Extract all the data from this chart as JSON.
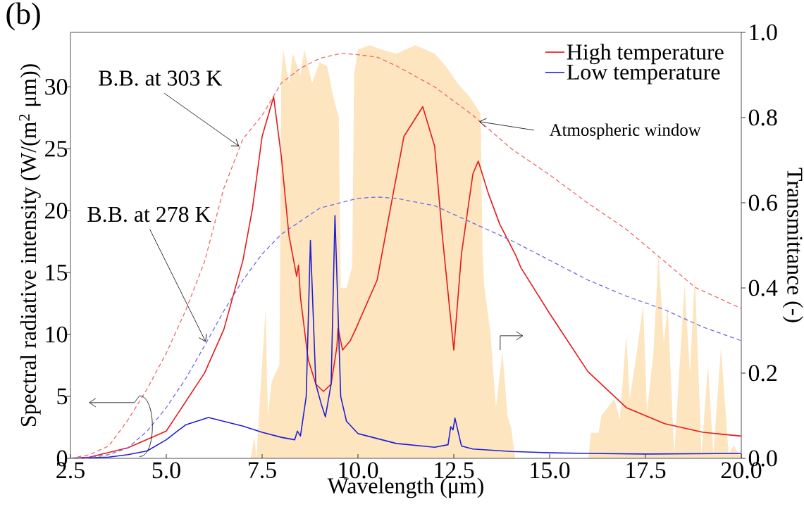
{
  "chart_data": {
    "type": "line",
    "title": "(b)",
    "xlabel": "Wavelength (μm)",
    "ylabel": "Spectral radiative intensity (W/(m$^{2}$ μm))",
    "y2label": "Transmittance (-)",
    "xlim": [
      2.5,
      20
    ],
    "ylim": [
      0,
      34.4
    ],
    "y2lim": [
      0,
      1.0
    ],
    "xticks": [
      {
        "value": 2.5,
        "label": "2.5"
      },
      {
        "value": 5,
        "label": "5.0"
      },
      {
        "value": 7.5,
        "label": "7.5"
      },
      {
        "value": 10,
        "label": "10.0"
      },
      {
        "value": 12.5,
        "label": "12.5"
      },
      {
        "value": 15,
        "label": "15.0"
      },
      {
        "value": 17.5,
        "label": "17.5"
      },
      {
        "value": 20,
        "label": "20.0"
      }
    ],
    "yticks": [
      0,
      5,
      10,
      15,
      20,
      25,
      30
    ],
    "y2ticks": [
      {
        "value": 0,
        "label": "0.0"
      },
      {
        "value": 0.2,
        "label": "0.2"
      },
      {
        "value": 0.4,
        "label": "0.4"
      },
      {
        "value": 0.6,
        "label": "0.6"
      },
      {
        "value": 0.8,
        "label": "0.8"
      },
      {
        "value": 1.0,
        "label": "1.0"
      }
    ],
    "legend": "top right",
    "series": [
      {
        "type": "area",
        "axis": "y2",
        "color": "#fde5c0",
        "x": [
          2.5,
          7.2,
          7.3,
          7.35,
          7.45,
          7.59,
          7.65,
          7.75,
          7.85,
          7.95,
          8.0,
          8.05,
          8.2,
          8.3,
          8.5,
          8.6,
          8.8,
          9.0,
          9.2,
          9.35,
          9.5,
          9.55,
          9.7,
          9.85,
          9.9,
          10.0,
          10.3,
          10.6,
          11.0,
          11.5,
          12.0,
          12.3,
          12.6,
          12.9,
          13.2,
          13.25,
          13.3,
          13.45,
          13.6,
          13.77,
          13.9,
          14.0,
          14.1,
          16.01,
          16.08,
          16.28,
          16.35,
          16.69,
          16.83,
          17.0,
          17.09,
          17.26,
          17.44,
          17.54,
          17.71,
          17.84,
          17.98,
          18.08,
          18.25,
          18.38,
          18.52,
          18.66,
          18.79,
          18.96,
          19.13,
          19.27,
          19.47,
          19.67,
          19.8,
          20.0
        ],
        "values": [
          0,
          0,
          0.05,
          0,
          0.15,
          0.35,
          0.1,
          0.18,
          0.2,
          0.22,
          0.9,
          0.96,
          0.88,
          0.95,
          0.9,
          0.96,
          0.88,
          0.93,
          0.92,
          0.85,
          0.8,
          0.4,
          0.4,
          0.45,
          0.9,
          0.96,
          0.97,
          0.96,
          0.95,
          0.97,
          0.95,
          0.92,
          0.88,
          0.85,
          0.81,
          0.48,
          0.4,
          0.3,
          0.12,
          0.25,
          0.1,
          0.07,
          0,
          0,
          0.06,
          0.06,
          0.1,
          0.14,
          0.09,
          0.29,
          0.14,
          0.24,
          0.36,
          0.11,
          0.25,
          0.48,
          0.27,
          0.36,
          0.01,
          0.2,
          0.41,
          0.2,
          0.43,
          0.01,
          0.22,
          0.01,
          0.26,
          0.01,
          0.03,
          0
        ]
      },
      {
        "name": "High temperature",
        "color": "#e8191b",
        "line_style": "solid",
        "x": [
          2.5,
          3.0,
          4.0,
          5.0,
          6.0,
          6.5,
          7.0,
          7.25,
          7.5,
          7.8,
          8.0,
          8.2,
          8.4,
          8.45,
          8.5,
          8.7,
          8.9,
          9.1,
          9.3,
          9.45,
          9.48,
          9.6,
          9.8,
          9.95,
          10.5,
          10.92,
          11.2,
          11.69,
          12.0,
          12.2,
          12.5,
          12.7,
          13.0,
          13.14,
          13.4,
          13.7,
          14.1,
          14.25,
          15.0,
          16.0,
          17.0,
          18.0,
          19.0,
          20.0
        ],
        "values": [
          0,
          0.1,
          0.85,
          2.2,
          6.9,
          10.4,
          16.0,
          20.2,
          26.0,
          29.2,
          24.4,
          18.0,
          14.7,
          15.6,
          13.0,
          8.0,
          6.0,
          5.4,
          6.0,
          9.0,
          10.5,
          8.75,
          9.5,
          10.5,
          14.4,
          21.4,
          26.0,
          28.4,
          25.2,
          18.0,
          8.75,
          16.5,
          23.0,
          24.0,
          21.4,
          18.9,
          16.5,
          15.4,
          11.7,
          7.0,
          4.1,
          2.8,
          2.1,
          1.8
        ]
      },
      {
        "name": "Low temperature",
        "color": "#1f1fd6",
        "line_style": "solid",
        "x": [
          2.5,
          3.5,
          4.0,
          4.5,
          5.0,
          5.5,
          6.1,
          7.0,
          7.5,
          8.0,
          8.35,
          8.42,
          8.5,
          8.65,
          8.76,
          8.9,
          9.05,
          9.15,
          9.3,
          9.4,
          9.55,
          9.7,
          10.0,
          11.0,
          12.0,
          12.35,
          12.42,
          12.48,
          12.53,
          12.7,
          13.0,
          14.0,
          15.0,
          16.0,
          17.5,
          20.0
        ],
        "values": [
          0,
          0.1,
          0.3,
          0.6,
          1.5,
          2.7,
          3.3,
          2.6,
          2.1,
          1.7,
          1.5,
          2.2,
          1.8,
          5.0,
          17.6,
          6.0,
          4.3,
          3.35,
          6.0,
          19.6,
          5.0,
          3.0,
          2.0,
          1.2,
          0.9,
          1.1,
          2.55,
          2.3,
          3.25,
          1.0,
          0.75,
          0.55,
          0.45,
          0.4,
          0.35,
          0.4
        ]
      },
      {
        "color": "#ee6a6a",
        "line_style": "dashed",
        "x": [
          2.5,
          3.0,
          3.5,
          4.0,
          4.5,
          5.0,
          5.5,
          6.0,
          6.5,
          7.0,
          7.5,
          8.0,
          8.5,
          9.0,
          9.55,
          10.0,
          10.5,
          11.0,
          12.0,
          13.0,
          14.0,
          15.0,
          16.0,
          17.0,
          18.0,
          18.8,
          20.0
        ],
        "values": [
          0,
          0.3,
          1.0,
          3.1,
          5.6,
          8.5,
          11.9,
          15.9,
          21.8,
          25.8,
          27.7,
          30.3,
          31.5,
          32.3,
          32.7,
          32.6,
          32.4,
          31.7,
          30.0,
          27.7,
          25.0,
          22.9,
          20.6,
          18.5,
          15.9,
          13.8,
          12.1
        ]
      },
      {
        "color": "#6b6be6",
        "line_style": "dashed",
        "x": [
          2.5,
          3.0,
          3.5,
          4.0,
          4.5,
          5.0,
          5.5,
          6.0,
          6.5,
          7.0,
          7.5,
          8.0,
          9.0,
          10.0,
          10.5,
          11.0,
          12.0,
          13.0,
          14.0,
          15.0,
          16.0,
          17.0,
          18.0,
          19.0,
          20.0
        ],
        "values": [
          0,
          0.05,
          0.3,
          0.85,
          2.2,
          4.1,
          6.4,
          9.1,
          11.9,
          14.4,
          16.5,
          18.1,
          20.2,
          21.0,
          21.1,
          21.0,
          20.4,
          19.0,
          17.6,
          16.0,
          14.4,
          13.1,
          12.0,
          10.6,
          9.5
        ]
      }
    ],
    "annotations": [
      {
        "text": "B.B. at 303 K",
        "x": 6.9,
        "y": 25.2
      },
      {
        "text": "B.B. at 278 K",
        "x": 6.03,
        "y": 9.4
      },
      {
        "text": "Atmospheric window",
        "x": 13.16,
        "y": 27.2
      }
    ]
  }
}
